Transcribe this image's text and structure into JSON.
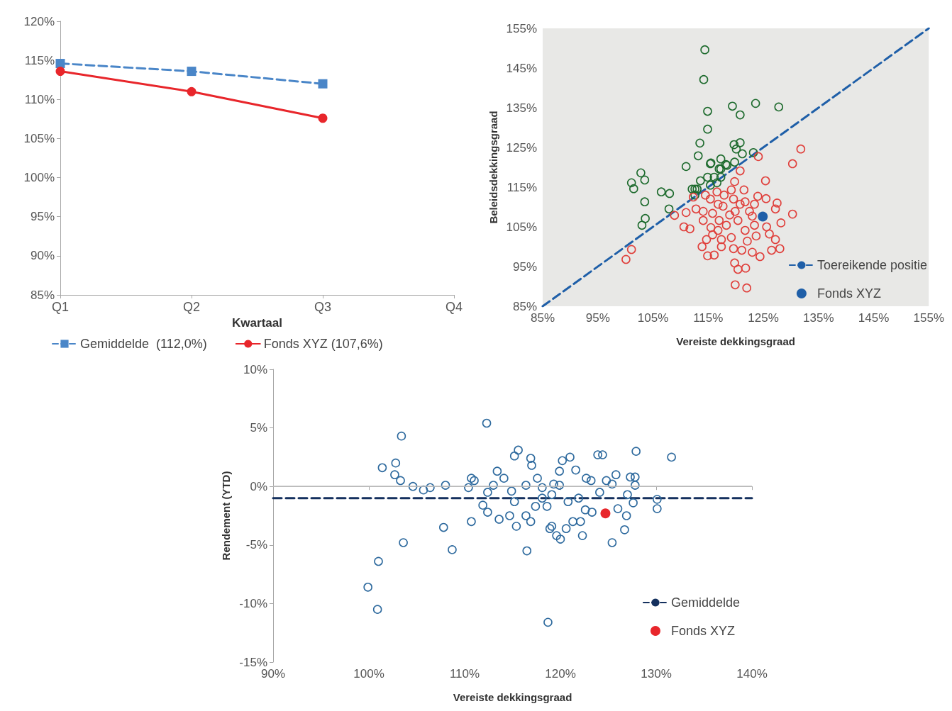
{
  "chart_data": [
    {
      "type": "line",
      "xlabel": "Kwartaal",
      "categories": [
        "Q1",
        "Q2",
        "Q3",
        "Q4"
      ],
      "ylim": [
        85,
        120
      ],
      "yticks": [
        {
          "value": 85,
          "label": "85%"
        },
        {
          "value": 90,
          "label": "90%"
        },
        {
          "value": 95,
          "label": "95%"
        },
        {
          "value": 100,
          "label": "100%"
        },
        {
          "value": 105,
          "label": "105%"
        },
        {
          "value": 110,
          "label": "110%"
        },
        {
          "value": 115,
          "label": "115%"
        },
        {
          "value": 120,
          "label": "120%"
        }
      ],
      "legend": "bottom",
      "series": [
        {
          "name": "Gemiddelde  (112,0%)",
          "color": "#4a86c8",
          "marker": "square",
          "line_style": "dashed",
          "values": [
            114.6,
            113.6,
            112.0,
            null
          ]
        },
        {
          "name": "Fonds XYZ (107,6%)",
          "color": "#e8262b",
          "marker": "circle",
          "line_style": "solid",
          "values": [
            113.6,
            111.0,
            107.6,
            null
          ]
        }
      ]
    },
    {
      "type": "scatter",
      "xlabel": "Vereiste dekkingsgraad",
      "ylabel": "Beleidsdekkingsgraad",
      "xlim": [
        85,
        155
      ],
      "ylim": [
        85,
        155
      ],
      "xticks": [
        {
          "value": 85,
          "label": "85%"
        },
        {
          "value": 95,
          "label": "95%"
        },
        {
          "value": 105,
          "label": "105%"
        },
        {
          "value": 115,
          "label": "115%"
        },
        {
          "value": 125,
          "label": "125%"
        },
        {
          "value": 135,
          "label": "135%"
        },
        {
          "value": 145,
          "label": "145%"
        },
        {
          "value": 155,
          "label": "155%"
        }
      ],
      "yticks": [
        {
          "value": 85,
          "label": "85%"
        },
        {
          "value": 95,
          "label": "95%"
        },
        {
          "value": 105,
          "label": "105%"
        },
        {
          "value": 115,
          "label": "115%"
        },
        {
          "value": 125,
          "label": "125%"
        },
        {
          "value": 135,
          "label": "135%"
        },
        {
          "value": 145,
          "label": "145%"
        },
        {
          "value": 155,
          "label": "155%"
        }
      ],
      "legend": "bottom right",
      "marker": "circle",
      "series": [
        {
          "color": "#1e6b2e",
          "x": [
            114.4,
            114.2,
            114.9,
            114.9,
            119.4,
            120.8,
            123.6,
            127.8,
            113.5,
            113.2,
            119.7,
            120.8,
            120.1,
            121.2,
            123.2,
            111.0,
            102.8,
            117.3,
            115.5,
            118.2,
            119.8,
            117.0,
            101.1,
            101.5,
            103.5,
            103.5,
            103.6,
            103.0,
            106.5,
            108.0,
            107.9,
            112.1,
            112.6,
            113.0,
            112.6,
            113.6,
            114.9,
            115.4,
            116.1,
            117.3,
            116.6,
            115.4,
            117.3,
            118.4
          ],
          "values": [
            149.6,
            142.1,
            134.1,
            129.6,
            135.4,
            133.2,
            136.1,
            135.2,
            126.1,
            122.9,
            125.7,
            126.2,
            124.6,
            123.4,
            123.7,
            120.2,
            118.6,
            122.1,
            121.1,
            120.7,
            121.3,
            119.6,
            116.1,
            114.6,
            116.8,
            111.3,
            107.1,
            105.4,
            113.8,
            113.4,
            109.5,
            114.5,
            114.5,
            114.5,
            113.0,
            116.6,
            117.5,
            115.5,
            117.5,
            117.5,
            116.1,
            120.9,
            119.6,
            120.5
          ]
        },
        {
          "color": "#e0403c",
          "x": [
            131.8,
            130.3,
            124.1,
            120.8,
            125.4,
            130.3,
            128.2,
            128.0,
            126.5,
            124.4,
            119.9,
            122.0,
            119.8,
            120.4,
            121.8,
            114.9,
            116.1,
            113.9,
            114.7,
            101.1,
            100.1,
            108.9,
            110.6,
            111.7,
            111.0,
            112.3,
            112.8,
            114.1,
            115.4,
            116.6,
            117.9,
            119.2,
            119.8,
            121.5,
            121.7,
            124.0,
            125.5,
            127.5,
            127.2,
            123.4,
            122.5,
            120.8,
            119.9,
            118.9,
            117.0,
            115.8,
            115.5,
            116.8,
            118.3,
            120.4,
            121.7,
            123.4,
            125.6,
            126.1,
            127.2,
            123.7,
            122.1,
            119.2,
            117.4,
            115.8,
            117.4,
            119.6,
            121.1,
            123.0,
            114.1,
            114.5,
            117.7,
            116.8,
            119.6,
            123.0
          ],
          "values": [
            124.6,
            120.9,
            122.7,
            119.1,
            116.6,
            108.2,
            106.0,
            99.5,
            99.1,
            97.5,
            90.4,
            89.6,
            95.9,
            94.3,
            94.6,
            97.7,
            97.9,
            100.0,
            101.8,
            99.3,
            96.8,
            107.9,
            105.0,
            104.5,
            108.6,
            112.5,
            109.5,
            106.6,
            112.0,
            113.8,
            113.0,
            114.3,
            116.4,
            114.3,
            111.3,
            112.7,
            112.1,
            111.0,
            109.5,
            110.7,
            108.9,
            110.7,
            108.9,
            108.0,
            106.6,
            108.4,
            104.8,
            104.1,
            105.4,
            106.6,
            104.1,
            105.4,
            105.0,
            103.2,
            101.8,
            102.7,
            101.4,
            102.3,
            101.8,
            103.0,
            100.0,
            99.5,
            99.1,
            98.6,
            108.9,
            113.0,
            110.2,
            110.7,
            112.0,
            107.7
          ]
        },
        {
          "name": "Toereikende positie",
          "type": "line",
          "color": "#1f5fa8",
          "marker": "none",
          "line_style": "dashed",
          "x": [
            85,
            155
          ],
          "values": [
            85,
            155
          ]
        },
        {
          "name": "Fonds XYZ",
          "color": "#1f5fa8",
          "x": [
            124.9
          ],
          "values": [
            107.6
          ]
        }
      ]
    },
    {
      "type": "scatter",
      "xlabel": "Vereiste dekkingsgraad",
      "ylabel": "Rendement (YTD)",
      "xlim": [
        90,
        140
      ],
      "ylim": [
        -15,
        10
      ],
      "xticks": [
        {
          "value": 90,
          "label": "90%"
        },
        {
          "value": 100,
          "label": "100%"
        },
        {
          "value": 110,
          "label": "110%"
        },
        {
          "value": 120,
          "label": "120%"
        },
        {
          "value": 130,
          "label": "130%"
        },
        {
          "value": 140,
          "label": "140%"
        }
      ],
      "yticks": [
        {
          "value": -15,
          "label": "-15%"
        },
        {
          "value": -10,
          "label": "-10%"
        },
        {
          "value": -5,
          "label": "-5%"
        },
        {
          "value": 0,
          "label": "0%"
        },
        {
          "value": 5,
          "label": "5%"
        },
        {
          "value": 10,
          "label": "10%"
        }
      ],
      "legend": "bottom right",
      "marker": "circle",
      "ref_lines": [
        {
          "axis": "y",
          "value": 0,
          "color": "#bfbfbf"
        }
      ],
      "series": [
        {
          "color": "#2e6a9e",
          "x": [
            103.4,
            101.4,
            102.8,
            102.7,
            103.3,
            104.6,
            105.7,
            106.4,
            108.0,
            107.8,
            108.7,
            103.6,
            101.0,
            99.9,
            100.9,
            112.3,
            110.4,
            110.7,
            111.0,
            113.4,
            114.1,
            115.6,
            115.2,
            116.9,
            117.0,
            110.7,
            116.5,
            111.9,
            112.4,
            113.6,
            114.7,
            115.4,
            115.2,
            116.4,
            116.9,
            117.4,
            118.1,
            118.6,
            119.1,
            119.6,
            113.0,
            114.9,
            116.4,
            117.6,
            118.1,
            119.3,
            112.4,
            127.9,
            131.6,
            123.9,
            124.4,
            120.2,
            121.0,
            121.6,
            119.9,
            122.7,
            123.2,
            125.8,
            127.3,
            127.8,
            124.8,
            125.4,
            127.8,
            124.1,
            127.0,
            127.6,
            130.1,
            130.1,
            126.0,
            126.9,
            122.6,
            123.3,
            121.3,
            122.1,
            126.7,
            125.4,
            122.3,
            120.0,
            120.6,
            118.9,
            121.9,
            120.8,
            119.9,
            119.1,
            118.7
          ],
          "values": [
            4.3,
            1.6,
            2.0,
            1.0,
            0.5,
            0.0,
            -0.3,
            -0.1,
            0.1,
            -3.5,
            -5.4,
            -4.8,
            -6.4,
            -8.6,
            -10.5,
            5.4,
            -0.1,
            0.7,
            0.5,
            1.3,
            0.7,
            3.1,
            2.6,
            2.4,
            1.8,
            -3.0,
            -5.5,
            -1.6,
            -2.2,
            -2.8,
            -2.5,
            -3.4,
            -1.3,
            -2.5,
            -3.0,
            -1.7,
            -1.0,
            -1.7,
            -3.4,
            -4.2,
            0.1,
            -0.4,
            0.1,
            0.7,
            -0.1,
            0.2,
            -0.5,
            3.0,
            2.5,
            2.7,
            2.7,
            2.2,
            2.5,
            1.4,
            1.3,
            0.7,
            0.5,
            1.0,
            0.8,
            0.8,
            0.5,
            0.2,
            0.1,
            -0.5,
            -0.7,
            -1.4,
            -1.1,
            -1.9,
            -1.9,
            -2.5,
            -2.0,
            -2.2,
            -3.0,
            -3.0,
            -3.7,
            -4.8,
            -4.2,
            -4.5,
            -3.6,
            -3.6,
            -1.0,
            -1.3,
            0.1,
            -0.7,
            -11.6
          ]
        },
        {
          "name": "Gemiddelde",
          "type": "line",
          "color": "#14305e",
          "marker": "none",
          "line_style": "dashed",
          "x": [
            90,
            140
          ],
          "values": [
            -1.0,
            -1.0
          ]
        },
        {
          "name": "Fonds XYZ",
          "color": "#e8262b",
          "x": [
            124.7
          ],
          "values": [
            -2.3
          ]
        }
      ]
    }
  ]
}
